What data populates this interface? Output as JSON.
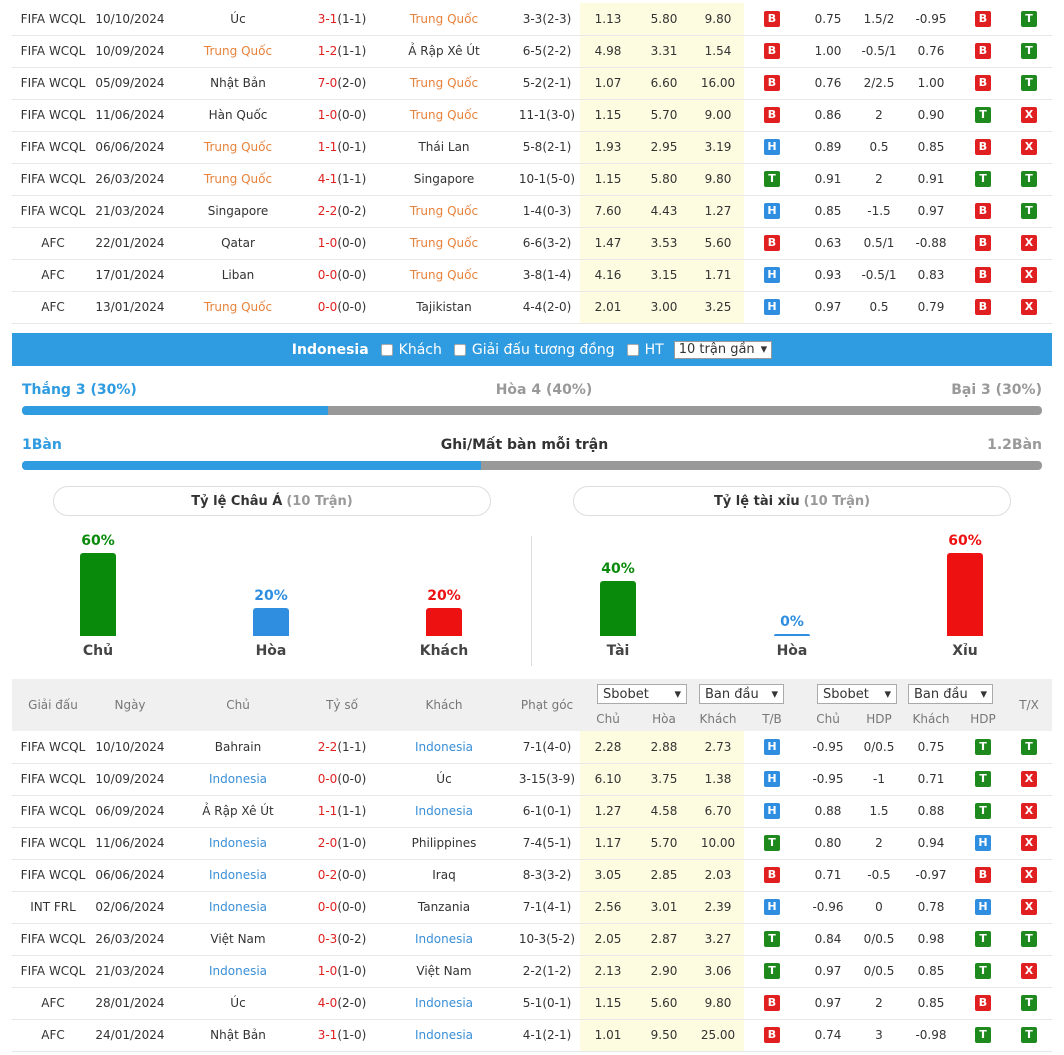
{
  "top_rows": [
    {
      "league": "FIFA WCQL",
      "date": "10/10/2024",
      "home": "Úc",
      "score": "3-1",
      "ht": "(1-1)",
      "away": "Trung Quốc",
      "corner": "3-3(2-3)",
      "o1": "1.13",
      "o2": "5.80",
      "o3": "9.80",
      "r1": "B",
      "h1": "0.75",
      "hdp": "1.5/2",
      "h2": "-0.95",
      "r2": "B",
      "r3": "T",
      "home_hl": false,
      "away_hl": true
    },
    {
      "league": "FIFA WCQL",
      "date": "10/09/2024",
      "home": "Trung Quốc",
      "score": "1-2",
      "ht": "(1-1)",
      "away": "Ả Rập Xê Út",
      "corner": "6-5(2-2)",
      "o1": "4.98",
      "o2": "3.31",
      "o3": "1.54",
      "r1": "B",
      "h1": "1.00",
      "hdp": "-0.5/1",
      "h2": "0.76",
      "r2": "B",
      "r3": "T",
      "home_hl": true,
      "away_hl": false
    },
    {
      "league": "FIFA WCQL",
      "date": "05/09/2024",
      "home": "Nhật Bản",
      "score": "7-0",
      "ht": "(2-0)",
      "away": "Trung Quốc",
      "corner": "5-2(2-1)",
      "o1": "1.07",
      "o2": "6.60",
      "o3": "16.00",
      "r1": "B",
      "h1": "0.76",
      "hdp": "2/2.5",
      "h2": "1.00",
      "r2": "B",
      "r3": "T",
      "home_hl": false,
      "away_hl": true
    },
    {
      "league": "FIFA WCQL",
      "date": "11/06/2024",
      "home": "Hàn Quốc",
      "score": "1-0",
      "ht": "(0-0)",
      "away": "Trung Quốc",
      "corner": "11-1(3-0)",
      "o1": "1.15",
      "o2": "5.70",
      "o3": "9.00",
      "r1": "B",
      "h1": "0.86",
      "hdp": "2",
      "h2": "0.90",
      "r2": "T",
      "r3": "X",
      "home_hl": false,
      "away_hl": true
    },
    {
      "league": "FIFA WCQL",
      "date": "06/06/2024",
      "home": "Trung Quốc",
      "score": "1-1",
      "ht": "(0-1)",
      "away": "Thái Lan",
      "corner": "5-8(2-1)",
      "o1": "1.93",
      "o2": "2.95",
      "o3": "3.19",
      "r1": "H",
      "h1": "0.89",
      "hdp": "0.5",
      "h2": "0.85",
      "r2": "B",
      "r3": "X",
      "home_hl": true,
      "away_hl": false
    },
    {
      "league": "FIFA WCQL",
      "date": "26/03/2024",
      "home": "Trung Quốc",
      "score": "4-1",
      "ht": "(1-1)",
      "away": "Singapore",
      "corner": "10-1(5-0)",
      "o1": "1.15",
      "o2": "5.80",
      "o3": "9.80",
      "r1": "T",
      "h1": "0.91",
      "hdp": "2",
      "h2": "0.91",
      "r2": "T",
      "r3": "T",
      "home_hl": true,
      "away_hl": false
    },
    {
      "league": "FIFA WCQL",
      "date": "21/03/2024",
      "home": "Singapore",
      "score": "2-2",
      "ht": "(0-2)",
      "away": "Trung Quốc",
      "corner": "1-4(0-3)",
      "o1": "7.60",
      "o2": "4.43",
      "o3": "1.27",
      "r1": "H",
      "h1": "0.85",
      "hdp": "-1.5",
      "h2": "0.97",
      "r2": "B",
      "r3": "T",
      "home_hl": false,
      "away_hl": true
    },
    {
      "league": "AFC",
      "date": "22/01/2024",
      "home": "Qatar",
      "score": "1-0",
      "ht": "(0-0)",
      "away": "Trung Quốc",
      "corner": "6-6(3-2)",
      "o1": "1.47",
      "o2": "3.53",
      "o3": "5.60",
      "r1": "B",
      "h1": "0.63",
      "hdp": "0.5/1",
      "h2": "-0.88",
      "r2": "B",
      "r3": "X",
      "home_hl": false,
      "away_hl": true
    },
    {
      "league": "AFC",
      "date": "17/01/2024",
      "home": "Liban",
      "score": "0-0",
      "ht": "(0-0)",
      "away": "Trung Quốc",
      "corner": "3-8(1-4)",
      "o1": "4.16",
      "o2": "3.15",
      "o3": "1.71",
      "r1": "H",
      "h1": "0.93",
      "hdp": "-0.5/1",
      "h2": "0.83",
      "r2": "B",
      "r3": "X",
      "home_hl": false,
      "away_hl": true
    },
    {
      "league": "AFC",
      "date": "13/01/2024",
      "home": "Trung Quốc",
      "score": "0-0",
      "ht": "(0-0)",
      "away": "Tajikistan",
      "corner": "4-4(2-0)",
      "o1": "2.01",
      "o2": "3.00",
      "o3": "3.25",
      "r1": "H",
      "h1": "0.97",
      "hdp": "0.5",
      "h2": "0.79",
      "r2": "B",
      "r3": "X",
      "home_hl": true,
      "away_hl": false
    }
  ],
  "filter_bar": {
    "team": "Indonesia",
    "opt1": "Khách",
    "opt2": "Giải đấu tương đồng",
    "opt3": "HT",
    "select": "10 trận gần"
  },
  "results": {
    "win": "Thắng 3 (30%)",
    "draw": "Hòa 4 (40%)",
    "loss": "Bại 3 (30%)",
    "win_fraction": 0.3
  },
  "goals": {
    "left": "1Bàn",
    "title": "Ghi/Mất bàn mỗi trận",
    "right": "1.2Bàn",
    "left_fraction": 0.45
  },
  "asia_pill": {
    "label": "Tỷ lệ Châu Á",
    "sub": "(10 Trận)"
  },
  "ou_pill": {
    "label": "Tỷ lệ tài xỉu",
    "sub": "(10 Trận)"
  },
  "asia_bars": [
    {
      "pct": "60%",
      "label": "Chủ",
      "value": 60,
      "color": "#0a8a0a"
    },
    {
      "pct": "20%",
      "label": "Hòa",
      "value": 20,
      "color": "#2f8ee0"
    },
    {
      "pct": "20%",
      "label": "Khách",
      "value": 20,
      "color": "#ee1111"
    }
  ],
  "ou_bars": [
    {
      "pct": "40%",
      "label": "Tài",
      "value": 40,
      "color": "#0a8a0a"
    },
    {
      "pct": "0%",
      "label": "Hòa",
      "value": 0,
      "color": "#2f8ee0"
    },
    {
      "pct": "60%",
      "label": "Xỉu",
      "value": 60,
      "color": "#ee1111"
    }
  ],
  "header": {
    "league": "Giải đấu",
    "date": "Ngày",
    "home": "Chủ",
    "score": "Tỷ số",
    "away": "Khách",
    "corner": "Phạt góc",
    "sel1": "Sbobet",
    "sel2": "Ban đầu",
    "sel3": "Sbobet",
    "sel4": "Ban đầu",
    "c_home": "Chủ",
    "c_draw": "Hòa",
    "c_away": "Khách",
    "c_tb": "T/B",
    "c_home2": "Chủ",
    "c_hdp": "HDP",
    "c_away2": "Khách",
    "c_hdp2": "HDP",
    "c_tx": "T/X"
  },
  "bottom_rows": [
    {
      "league": "FIFA WCQL",
      "date": "10/10/2024",
      "home": "Bahrain",
      "score": "2-2",
      "ht": "(1-1)",
      "away": "Indonesia",
      "corner": "7-1(4-0)",
      "o1": "2.28",
      "o2": "2.88",
      "o3": "2.73",
      "r1": "H",
      "h1": "-0.95",
      "hdp": "0/0.5",
      "h2": "0.75",
      "r2": "T",
      "r3": "T",
      "home_hl": false,
      "away_hl": true
    },
    {
      "league": "FIFA WCQL",
      "date": "10/09/2024",
      "home": "Indonesia",
      "score": "0-0",
      "ht": "(0-0)",
      "away": "Úc",
      "corner": "3-15(3-9)",
      "o1": "6.10",
      "o2": "3.75",
      "o3": "1.38",
      "r1": "H",
      "h1": "-0.95",
      "hdp": "-1",
      "h2": "0.71",
      "r2": "T",
      "r3": "X",
      "home_hl": true,
      "away_hl": false
    },
    {
      "league": "FIFA WCQL",
      "date": "06/09/2024",
      "home": "Ả Rập Xê Út",
      "score": "1-1",
      "ht": "(1-1)",
      "away": "Indonesia",
      "corner": "6-1(0-1)",
      "o1": "1.27",
      "o2": "4.58",
      "o3": "6.70",
      "r1": "H",
      "h1": "0.88",
      "hdp": "1.5",
      "h2": "0.88",
      "r2": "T",
      "r3": "X",
      "home_hl": false,
      "away_hl": true
    },
    {
      "league": "FIFA WCQL",
      "date": "11/06/2024",
      "home": "Indonesia",
      "score": "2-0",
      "ht": "(1-0)",
      "away": "Philippines",
      "corner": "7-4(5-1)",
      "o1": "1.17",
      "o2": "5.70",
      "o3": "10.00",
      "r1": "T",
      "h1": "0.80",
      "hdp": "2",
      "h2": "0.94",
      "r2": "H",
      "r3": "X",
      "home_hl": true,
      "away_hl": false
    },
    {
      "league": "FIFA WCQL",
      "date": "06/06/2024",
      "home": "Indonesia",
      "score": "0-2",
      "ht": "(0-0)",
      "away": "Iraq",
      "corner": "8-3(3-2)",
      "o1": "3.05",
      "o2": "2.85",
      "o3": "2.03",
      "r1": "B",
      "h1": "0.71",
      "hdp": "-0.5",
      "h2": "-0.97",
      "r2": "B",
      "r3": "X",
      "home_hl": true,
      "away_hl": false
    },
    {
      "league": "INT FRL",
      "date": "02/06/2024",
      "home": "Indonesia",
      "score": "0-0",
      "ht": "(0-0)",
      "away": "Tanzania",
      "corner": "7-1(4-1)",
      "o1": "2.56",
      "o2": "3.01",
      "o3": "2.39",
      "r1": "H",
      "h1": "-0.96",
      "hdp": "0",
      "h2": "0.78",
      "r2": "H",
      "r3": "X",
      "home_hl": true,
      "away_hl": false
    },
    {
      "league": "FIFA WCQL",
      "date": "26/03/2024",
      "home": "Việt Nam",
      "score": "0-3",
      "ht": "(0-2)",
      "away": "Indonesia",
      "corner": "10-3(5-2)",
      "o1": "2.05",
      "o2": "2.87",
      "o3": "3.27",
      "r1": "T",
      "h1": "0.84",
      "hdp": "0/0.5",
      "h2": "0.98",
      "r2": "T",
      "r3": "T",
      "home_hl": false,
      "away_hl": true
    },
    {
      "league": "FIFA WCQL",
      "date": "21/03/2024",
      "home": "Indonesia",
      "score": "1-0",
      "ht": "(1-0)",
      "away": "Việt Nam",
      "corner": "2-2(1-2)",
      "o1": "2.13",
      "o2": "2.90",
      "o3": "3.06",
      "r1": "T",
      "h1": "0.97",
      "hdp": "0/0.5",
      "h2": "0.85",
      "r2": "T",
      "r3": "X",
      "home_hl": true,
      "away_hl": false
    },
    {
      "league": "AFC",
      "date": "28/01/2024",
      "home": "Úc",
      "score": "4-0",
      "ht": "(2-0)",
      "away": "Indonesia",
      "corner": "5-1(0-1)",
      "o1": "1.15",
      "o2": "5.60",
      "o3": "9.80",
      "r1": "B",
      "h1": "0.97",
      "hdp": "2",
      "h2": "0.85",
      "r2": "B",
      "r3": "T",
      "home_hl": false,
      "away_hl": true
    },
    {
      "league": "AFC",
      "date": "24/01/2024",
      "home": "Nhật Bản",
      "score": "3-1",
      "ht": "(1-0)",
      "away": "Indonesia",
      "corner": "4-1(2-1)",
      "o1": "1.01",
      "o2": "9.50",
      "o3": "25.00",
      "r1": "B",
      "h1": "0.74",
      "hdp": "3",
      "h2": "-0.98",
      "r2": "T",
      "r3": "T",
      "home_hl": false,
      "away_hl": true
    }
  ],
  "colors": {
    "accent": "#2f9be0",
    "orange_team": "#e8823a",
    "blue_team": "#3a8fd6",
    "badge_red": "#e02020",
    "badge_green": "#1e8a1e",
    "badge_blue": "#2f8ee0"
  }
}
